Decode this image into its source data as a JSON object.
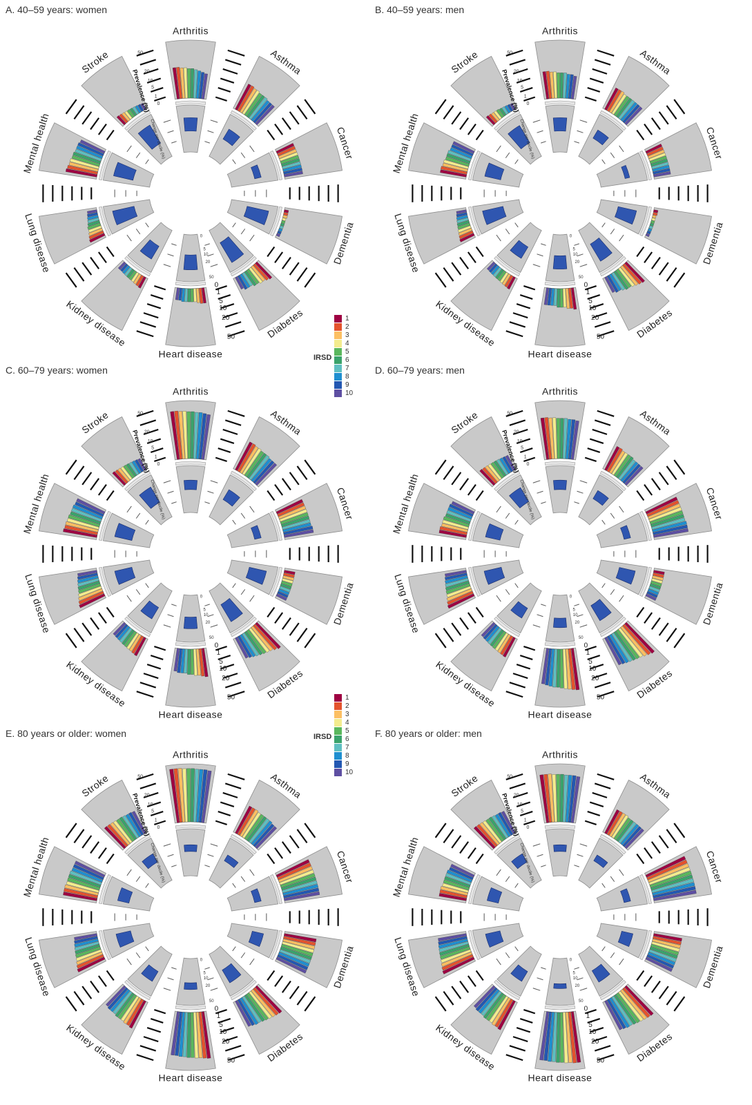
{
  "legend": {
    "title": "IRSD",
    "entries": [
      {
        "label": "1",
        "color": "#9e0142"
      },
      {
        "label": "2",
        "color": "#e4532d"
      },
      {
        "label": "3",
        "color": "#fcbf62"
      },
      {
        "label": "4",
        "color": "#f3ec8e"
      },
      {
        "label": "5",
        "color": "#5ab75d"
      },
      {
        "label": "6",
        "color": "#3aa36b"
      },
      {
        "label": "7",
        "color": "#5fbfc1"
      },
      {
        "label": "8",
        "color": "#1f8fd0"
      },
      {
        "label": "9",
        "color": "#2358b2"
      },
      {
        "label": "10",
        "color": "#5e4fa2"
      }
    ]
  },
  "axis_labels": {
    "prevalence": "Prevalence (%)",
    "change": "Change per decile (%)",
    "prevalence_ticks": [
      "0",
      "1",
      "5",
      "10",
      "20",
      "50"
    ],
    "change_ticks": [
      "0",
      "5",
      "10",
      "20",
      "50"
    ]
  },
  "chart_data": [
    {
      "type": "bar",
      "title": "A. 40–59 years: women",
      "categories": [
        "Arthritis",
        "Asthma",
        "Cancer",
        "Dementia",
        "Diabetes",
        "Heart disease",
        "Kidney disease",
        "Lung disease",
        "Mental health",
        "Stroke"
      ],
      "prevalence_by_irsd_decile": [
        [
          17,
          17,
          16,
          16,
          15,
          15,
          14,
          13,
          12,
          11
        ],
        [
          14,
          14,
          13,
          13,
          12,
          12,
          12,
          11,
          11,
          11
        ],
        [
          6,
          6,
          6,
          6,
          6,
          6,
          6,
          6,
          6,
          6
        ],
        [
          0.3,
          0.3,
          0.3,
          0.2,
          0.2,
          0.2,
          0.2,
          0.2,
          0.2,
          0.2
        ],
        [
          8,
          7,
          6,
          6,
          5,
          5,
          4,
          4,
          4,
          3
        ],
        [
          4,
          4,
          3.5,
          3,
          3,
          3,
          3,
          3,
          2.5,
          2.5
        ],
        [
          2.5,
          2.2,
          2,
          1.8,
          1.7,
          1.6,
          1.5,
          1.4,
          1.3,
          1.3
        ],
        [
          4.5,
          4,
          3.5,
          3,
          3,
          2.5,
          2.2,
          2,
          1.8,
          1.6
        ],
        [
          17,
          16,
          15,
          15,
          14,
          14,
          13,
          13,
          13,
          12
        ],
        [
          2,
          1.8,
          1.6,
          1.4,
          1.3,
          1.2,
          1.1,
          1,
          0.9,
          0.8
        ]
      ],
      "change_per_decile": [
        4,
        3,
        1,
        11,
        12,
        5,
        5,
        11,
        9,
        10
      ]
    },
    {
      "type": "bar",
      "title": "B. 40–59 years: men",
      "categories": [
        "Arthritis",
        "Asthma",
        "Cancer",
        "Dementia",
        "Diabetes",
        "Heart disease",
        "Kidney disease",
        "Lung disease",
        "Mental health",
        "Stroke"
      ],
      "prevalence_by_irsd_decile": [
        [
          13,
          13,
          12,
          12,
          11,
          11,
          11,
          10,
          10,
          9
        ],
        [
          10,
          10,
          10,
          9,
          9,
          9,
          9,
          9,
          9,
          9
        ],
        [
          5,
          5,
          5,
          5,
          5,
          5,
          5,
          5,
          5,
          5
        ],
        [
          0.3,
          0.3,
          0.2,
          0.2,
          0.2,
          0.2,
          0.2,
          0.2,
          0.2,
          0.2
        ],
        [
          12,
          11,
          10,
          9,
          8,
          8,
          7,
          6,
          6,
          5
        ],
        [
          8,
          7,
          7,
          6,
          6,
          6,
          5,
          5,
          5,
          5
        ],
        [
          3,
          2.7,
          2.5,
          2.3,
          2.1,
          2,
          1.9,
          1.8,
          1.7,
          1.6
        ],
        [
          4,
          3.6,
          3.3,
          3,
          2.7,
          2.5,
          2.3,
          2.1,
          1.9,
          1.7
        ],
        [
          12,
          12,
          11,
          11,
          10,
          10,
          10,
          9,
          9,
          9
        ],
        [
          2,
          1.8,
          1.6,
          1.5,
          1.4,
          1.2,
          1.1,
          1,
          0.9,
          0.8
        ]
      ],
      "change_per_decile": [
        4,
        2,
        0.5,
        8,
        9,
        4,
        4,
        10,
        6,
        9
      ]
    },
    {
      "type": "bar",
      "title": "C. 60–79 years: women",
      "categories": [
        "Arthritis",
        "Asthma",
        "Cancer",
        "Dementia",
        "Diabetes",
        "Heart disease",
        "Kidney disease",
        "Lung disease",
        "Mental health",
        "Stroke"
      ],
      "prevalence_by_irsd_decile": [
        [
          40,
          40,
          39,
          39,
          38,
          38,
          37,
          37,
          36,
          35
        ],
        [
          17,
          17,
          16,
          16,
          15,
          15,
          15,
          14,
          14,
          14
        ],
        [
          14,
          14,
          14,
          14,
          14,
          14,
          14,
          14,
          15,
          15
        ],
        [
          2,
          2,
          2,
          2,
          2,
          2,
          2,
          2,
          2,
          2
        ],
        [
          20,
          18,
          16,
          15,
          14,
          13,
          12,
          11,
          10,
          9
        ],
        [
          14,
          13,
          12,
          12,
          11,
          11,
          10,
          10,
          10,
          9
        ],
        [
          7,
          6.5,
          6,
          5.8,
          5.5,
          5.3,
          5,
          4.8,
          4.6,
          4.4
        ],
        [
          13,
          12,
          11,
          10,
          9,
          8.5,
          8,
          7.5,
          7,
          6.5
        ],
        [
          20,
          19,
          19,
          18,
          18,
          17,
          17,
          17,
          16,
          16
        ],
        [
          5,
          4.6,
          4.3,
          4,
          3.8,
          3.6,
          3.4,
          3.2,
          3,
          2.8
        ]
      ],
      "change_per_decile": [
        2,
        3,
        1,
        7,
        9,
        3,
        4,
        7,
        7,
        7
      ]
    },
    {
      "type": "bar",
      "title": "D. 60–79 years: men",
      "categories": [
        "Arthritis",
        "Asthma",
        "Cancer",
        "Dementia",
        "Diabetes",
        "Heart disease",
        "Kidney disease",
        "Lung disease",
        "Mental health",
        "Stroke"
      ],
      "prevalence_by_irsd_decile": [
        [
          30,
          30,
          29,
          29,
          28,
          28,
          28,
          27,
          27,
          26
        ],
        [
          12,
          12,
          11,
          11,
          11,
          11,
          10,
          10,
          10,
          10
        ],
        [
          20,
          20,
          20,
          20,
          20,
          20,
          20,
          21,
          21,
          21
        ],
        [
          2,
          2,
          2,
          2,
          2,
          2,
          2,
          2,
          2,
          2
        ],
        [
          28,
          26,
          24,
          22,
          21,
          20,
          19,
          18,
          17,
          16
        ],
        [
          30,
          29,
          28,
          27,
          26,
          25,
          25,
          24,
          23,
          22
        ],
        [
          8,
          7.6,
          7.3,
          7,
          6.8,
          6.5,
          6.3,
          6,
          5.8,
          5.5
        ],
        [
          14,
          13,
          12,
          11,
          10.5,
          10,
          9.5,
          9,
          8.5,
          8
        ],
        [
          13,
          13,
          12,
          12,
          12,
          11,
          11,
          11,
          11,
          10
        ],
        [
          7,
          6.6,
          6.3,
          6,
          5.7,
          5.5,
          5.3,
          5,
          4.8,
          4.6
        ]
      ],
      "change_per_decile": [
        2,
        2,
        1,
        6,
        7,
        2,
        3,
        7,
        5,
        6
      ]
    },
    {
      "type": "bar",
      "title": "E. 80 years or older: women",
      "categories": [
        "Arthritis",
        "Asthma",
        "Cancer",
        "Dementia",
        "Diabetes",
        "Heart disease",
        "Kidney disease",
        "Lung disease",
        "Mental health",
        "Stroke"
      ],
      "prevalence_by_irsd_decile": [
        [
          50,
          50,
          50,
          49,
          49,
          49,
          48,
          48,
          48,
          47
        ],
        [
          16,
          16,
          16,
          15,
          15,
          15,
          15,
          15,
          14,
          14
        ],
        [
          22,
          22,
          22,
          22,
          22,
          22,
          22,
          22,
          22,
          22
        ],
        [
          18,
          18,
          18,
          18,
          18,
          18,
          18,
          18,
          18,
          18
        ],
        [
          22,
          21,
          20,
          19,
          18,
          17,
          16,
          16,
          15,
          14
        ],
        [
          38,
          37,
          36,
          36,
          35,
          35,
          34,
          34,
          33,
          33
        ],
        [
          16,
          15,
          15,
          14,
          14,
          14,
          13,
          13,
          13,
          12
        ],
        [
          15,
          14,
          13,
          12,
          11.5,
          11,
          10.5,
          10,
          9.5,
          9
        ],
        [
          20,
          20,
          20,
          19,
          19,
          19,
          19,
          18,
          18,
          18
        ],
        [
          14,
          13.5,
          13,
          12.5,
          12,
          12,
          11.5,
          11,
          11,
          10.5
        ]
      ],
      "change_per_decile": [
        1,
        1,
        1,
        3,
        5,
        1,
        3,
        5,
        3,
        2
      ]
    },
    {
      "type": "bar",
      "title": "F. 80 years or older: men",
      "categories": [
        "Arthritis",
        "Asthma",
        "Cancer",
        "Dementia",
        "Diabetes",
        "Heart disease",
        "Kidney disease",
        "Lung disease",
        "Mental health",
        "Stroke"
      ],
      "prevalence_by_irsd_decile": [
        [
          40,
          40,
          40,
          39,
          39,
          39,
          38,
          38,
          38,
          37
        ],
        [
          12,
          12,
          12,
          12,
          11,
          11,
          11,
          11,
          11,
          11
        ],
        [
          32,
          32,
          32,
          32,
          32,
          32,
          32,
          32,
          32,
          32
        ],
        [
          14,
          14,
          14,
          14,
          14,
          14,
          14,
          14,
          14,
          14
        ],
        [
          26,
          25,
          24,
          23,
          22,
          21,
          20,
          20,
          19,
          18
        ],
        [
          45,
          45,
          44,
          44,
          43,
          43,
          42,
          42,
          41,
          41
        ],
        [
          18,
          17,
          17,
          16,
          16,
          16,
          15,
          15,
          15,
          14
        ],
        [
          20,
          19,
          18,
          17,
          16.5,
          16,
          15.5,
          15,
          14.5,
          14
        ],
        [
          13,
          13,
          13,
          12,
          12,
          12,
          12,
          12,
          11,
          11
        ],
        [
          14,
          13.5,
          13,
          12.5,
          12,
          12,
          11.5,
          11,
          11,
          10.5
        ]
      ],
      "change_per_decile": [
        1,
        1,
        1,
        3,
        4,
        0.5,
        3,
        5,
        3,
        2
      ]
    }
  ]
}
